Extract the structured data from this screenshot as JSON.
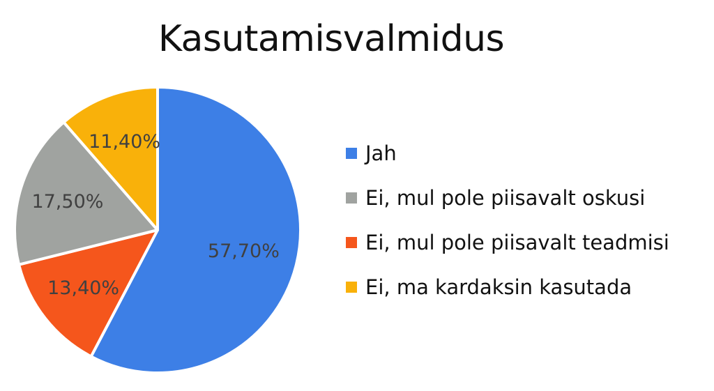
{
  "chart_data": {
    "type": "pie",
    "title": "Kasutamisvalmidus",
    "legend_position": "right",
    "slices": [
      {
        "label": "Jah",
        "value": 57.7,
        "display": "57,70%",
        "color": "#3D7FE6"
      },
      {
        "label": "Ei, mul pole piisavalt teadmisi",
        "value": 13.4,
        "display": "13,40%",
        "color": "#F5561C"
      },
      {
        "label": "Ei, mul pole piisavalt oskusi",
        "value": 17.5,
        "display": "17,50%",
        "color": "#A0A3A0"
      },
      {
        "label": "Ei, ma kardaksin kasutada",
        "value": 11.4,
        "display": "11,40%",
        "color": "#F9B10A"
      }
    ],
    "legend": [
      {
        "label": "Jah",
        "color": "#3D7FE6"
      },
      {
        "label": "Ei, mul pole piisavalt oskusi",
        "color": "#A0A3A0"
      },
      {
        "label": "Ei, mul pole piisavalt teadmisi",
        "color": "#F5561C"
      },
      {
        "label": "Ei, ma kardaksin kasutada",
        "color": "#F9B10A"
      }
    ]
  }
}
